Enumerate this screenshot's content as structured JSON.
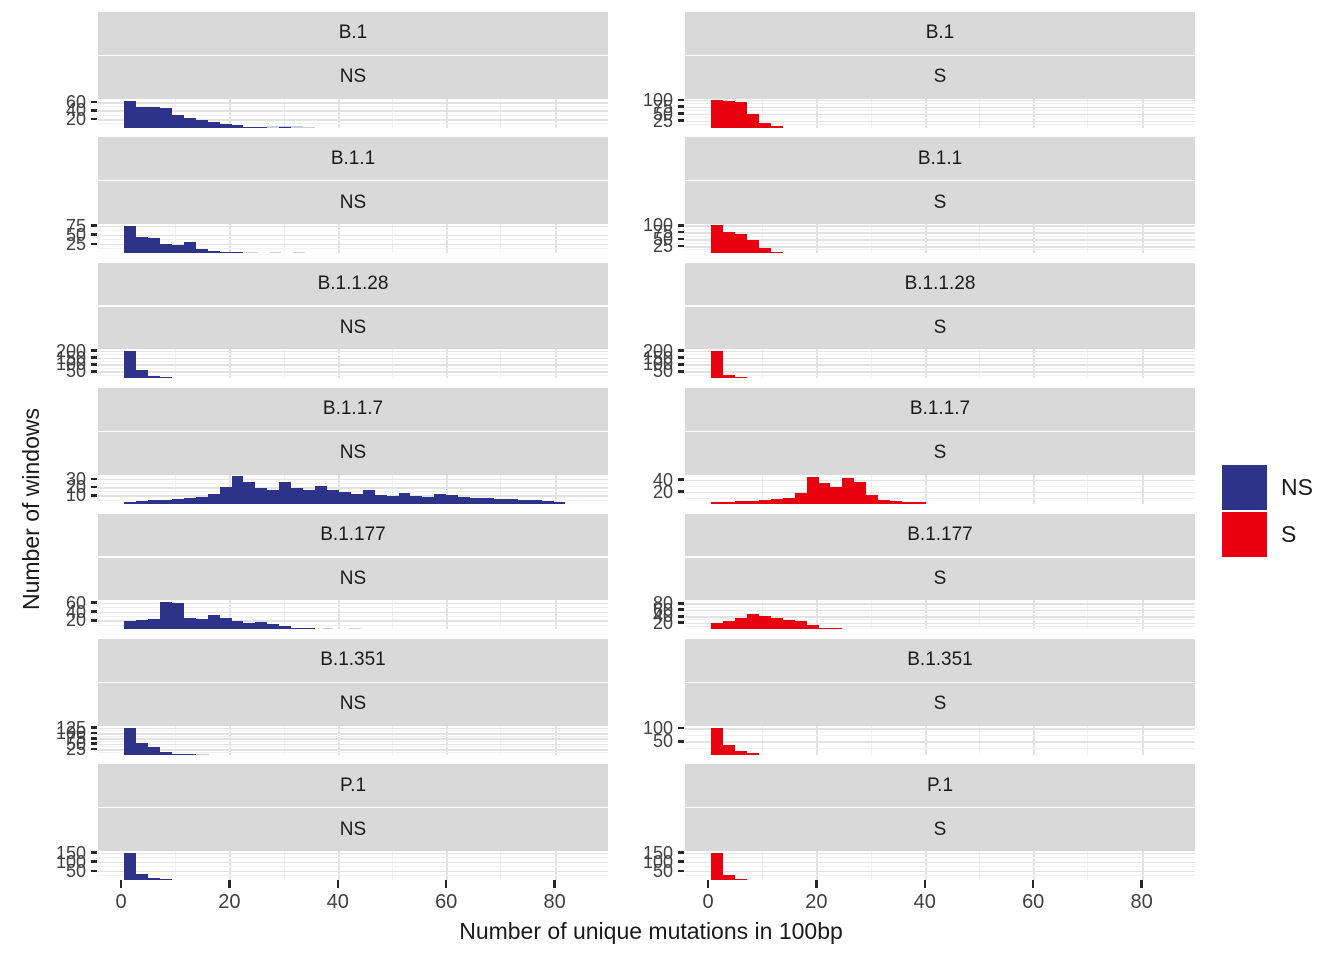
{
  "chart_data": {
    "type": "bar",
    "subtype": "faceted-histograms",
    "xlabel": "Number of unique mutations in 100bp",
    "ylabel": "Number of windows",
    "x_ticks": [
      0,
      20,
      40,
      60,
      80
    ],
    "facet_rows": [
      "B.1",
      "B.1.1",
      "B.1.1.28",
      "B.1.1.7",
      "B.1.177",
      "B.1.351",
      "P.1"
    ],
    "facet_cols": [
      "NS",
      "S"
    ],
    "colors": {
      "NS": "#2C3389",
      "S": "#E9000E"
    },
    "bin_start": 0.6,
    "bin_width": 2.2,
    "panels": [
      {
        "row": "B.1",
        "col": "NS",
        "y_ticks": [
          20,
          40,
          60
        ],
        "ylim": 68,
        "values": [
          62,
          49,
          48,
          46,
          30,
          22,
          17,
          13,
          8,
          5,
          2,
          1,
          0,
          2
        ],
        "faint": [
          [
            27.0,
            4
          ],
          [
            29.2,
            3
          ],
          [
            31.4,
            3
          ],
          [
            33.6,
            2
          ]
        ]
      },
      {
        "row": "B.1",
        "col": "S",
        "y_ticks": [
          25,
          50,
          75,
          100
        ],
        "ylim": 105,
        "values": [
          100,
          95,
          93,
          50,
          15,
          4
        ],
        "faint": []
      },
      {
        "row": "B.1.1",
        "col": "NS",
        "y_ticks": [
          25,
          50,
          75
        ],
        "ylim": 80,
        "values": [
          75,
          45,
          42,
          25,
          22,
          30,
          12,
          6,
          3,
          2
        ],
        "faint": [
          [
            23.0,
            3
          ],
          [
            27.4,
            2
          ],
          [
            31.8,
            2
          ]
        ]
      },
      {
        "row": "B.1.1",
        "col": "S",
        "y_ticks": [
          25,
          50,
          75,
          100
        ],
        "ylim": 105,
        "values": [
          100,
          75,
          70,
          45,
          18,
          5
        ],
        "faint": []
      },
      {
        "row": "B.1.1.28",
        "col": "NS",
        "y_ticks": [
          50,
          100,
          150,
          200
        ],
        "ylim": 210,
        "values": [
          200,
          60,
          20,
          8
        ],
        "faint": []
      },
      {
        "row": "B.1.1.28",
        "col": "S",
        "y_ticks": [
          50,
          100,
          150,
          200
        ],
        "ylim": 210,
        "values": [
          200,
          25,
          6
        ],
        "faint": []
      },
      {
        "row": "B.1.1.7",
        "col": "NS",
        "y_ticks": [
          10,
          20,
          30
        ],
        "ylim": 35,
        "values": [
          2,
          3,
          4,
          5,
          6,
          7,
          8,
          12,
          20,
          33,
          26,
          19,
          17,
          26,
          19,
          16,
          21,
          17,
          14,
          12,
          16,
          10,
          9,
          13,
          9,
          8,
          12,
          11,
          8,
          7,
          7,
          6,
          6,
          5,
          4,
          3,
          2
        ],
        "faint": []
      },
      {
        "row": "B.1.1.7",
        "col": "S",
        "y_ticks": [
          20,
          40
        ],
        "ylim": 48,
        "values": [
          3,
          3,
          4,
          5,
          6,
          7,
          10,
          18,
          45,
          34,
          27,
          43,
          36,
          14,
          6,
          4,
          3,
          2
        ],
        "faint": []
      },
      {
        "row": "B.1.177",
        "col": "NS",
        "y_ticks": [
          20,
          40,
          60
        ],
        "ylim": 66,
        "values": [
          18,
          20,
          24,
          62,
          60,
          25,
          22,
          33,
          26,
          19,
          15,
          16,
          11,
          7,
          3,
          2
        ],
        "faint": [
          [
            37.0,
            3
          ],
          [
            42.0,
            2
          ]
        ]
      },
      {
        "row": "B.1.177",
        "col": "S",
        "y_ticks": [
          20,
          40,
          60,
          80
        ],
        "ylim": 90,
        "values": [
          20,
          25,
          33,
          48,
          40,
          34,
          27,
          24,
          12,
          4,
          2
        ],
        "faint": []
      },
      {
        "row": "B.1.351",
        "col": "NS",
        "y_ticks": [
          25,
          50,
          75,
          100,
          125
        ],
        "ylim": 135,
        "values": [
          125,
          55,
          33,
          12,
          4,
          2
        ],
        "faint": [
          [
            14.0,
            2
          ]
        ]
      },
      {
        "row": "B.1.351",
        "col": "S",
        "y_ticks": [
          50,
          100
        ],
        "ylim": 110,
        "values": [
          100,
          35,
          12,
          4
        ],
        "faint": []
      },
      {
        "row": "P.1",
        "col": "NS",
        "y_ticks": [
          50,
          100,
          150
        ],
        "ylim": 160,
        "values": [
          150,
          30,
          10,
          3
        ],
        "faint": []
      },
      {
        "row": "P.1",
        "col": "S",
        "y_ticks": [
          50,
          100,
          150
        ],
        "ylim": 160,
        "values": [
          150,
          25,
          6
        ],
        "faint": []
      }
    ]
  },
  "legend": {
    "items": [
      {
        "label": "NS",
        "color": "#2C3389"
      },
      {
        "label": "S",
        "color": "#E9000E"
      }
    ]
  },
  "axes": {
    "x_title": "Number of unique mutations in 100bp",
    "y_title": "Number of windows"
  }
}
